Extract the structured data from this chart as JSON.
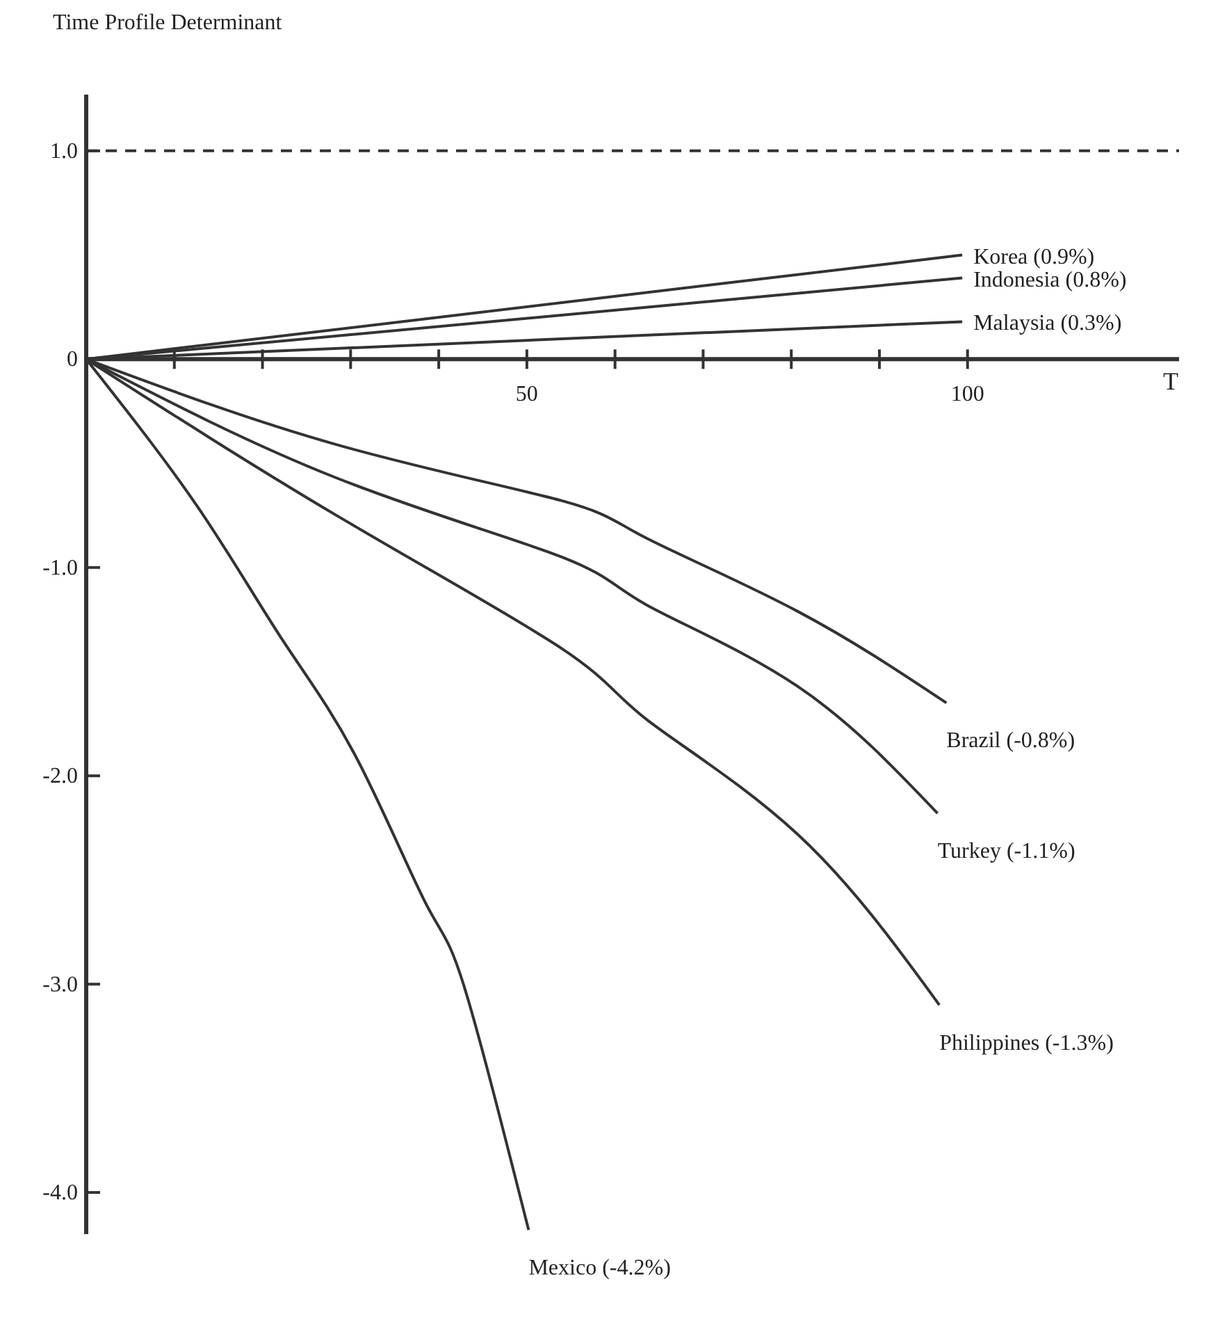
{
  "chart_data": {
    "type": "line",
    "ylabel": "Time Profile Determinant",
    "xlabel": "T",
    "xlim": [
      0,
      124
    ],
    "ylim": [
      -4.2,
      1.27
    ],
    "xticks": [
      {
        "value": 10,
        "label": null
      },
      {
        "value": 20,
        "label": null
      },
      {
        "value": 30,
        "label": null
      },
      {
        "value": 40,
        "label": null
      },
      {
        "value": 50,
        "label": "50"
      },
      {
        "value": 60,
        "label": null
      },
      {
        "value": 70,
        "label": null
      },
      {
        "value": 80,
        "label": null
      },
      {
        "value": 90,
        "label": null
      },
      {
        "value": 100,
        "label": "100"
      }
    ],
    "yticks": [
      {
        "value": 1,
        "label": "1.0"
      },
      0,
      {
        "value": -1,
        "label": "-1.0"
      },
      {
        "value": -2,
        "label": "-2.0"
      },
      {
        "value": -3,
        "label": "-3.0"
      },
      {
        "value": -4,
        "label": "-4.0"
      }
    ],
    "ref_lines": [
      {
        "axis": "y",
        "value": 1,
        "line_style": "dashed",
        "color": "#333333"
      }
    ],
    "grid": false,
    "legend": false,
    "marker": "none",
    "line_style": "solid",
    "series": [
      {
        "name": "Korea (0.9%)",
        "color": "#333333",
        "x": [
          0,
          99.4
        ],
        "values": [
          0,
          0.5
        ]
      },
      {
        "name": "Indonesia (0.8%)",
        "color": "#333333",
        "x": [
          0,
          99.4
        ],
        "values": [
          0,
          0.39
        ]
      },
      {
        "name": "Malaysia (0.3%)",
        "color": "#333333",
        "x": [
          0,
          99.4
        ],
        "values": [
          0,
          0.18
        ]
      },
      {
        "name": "Brazil (-0.8%)",
        "color": "#333333",
        "x": [
          0,
          28.4,
          54,
          63.6,
          80.7,
          97.6
        ],
        "values": [
          0,
          -0.41,
          -0.68,
          -0.86,
          -1.21,
          -1.65
        ]
      },
      {
        "name": "Turkey (-1.1%)",
        "color": "#333333",
        "x": [
          0,
          28.4,
          54,
          63.6,
          80.7,
          96.6
        ],
        "values": [
          0,
          -0.57,
          -0.95,
          -1.18,
          -1.57,
          -2.18
        ]
      },
      {
        "name": "Philippines (-1.3%)",
        "color": "#333333",
        "x": [
          0,
          28.4,
          54,
          63.6,
          80.7,
          96.8
        ],
        "values": [
          0,
          -0.75,
          -1.39,
          -1.73,
          -2.28,
          -3.1
        ]
      },
      {
        "name": "Mexico (-4.2%)",
        "color": "#333333",
        "x": [
          0,
          12.5,
          22,
          30.5,
          38.5,
          42.8,
          50.2
        ],
        "values": [
          0,
          -0.7,
          -1.33,
          -1.9,
          -2.61,
          -3.0,
          -4.18
        ]
      }
    ]
  }
}
